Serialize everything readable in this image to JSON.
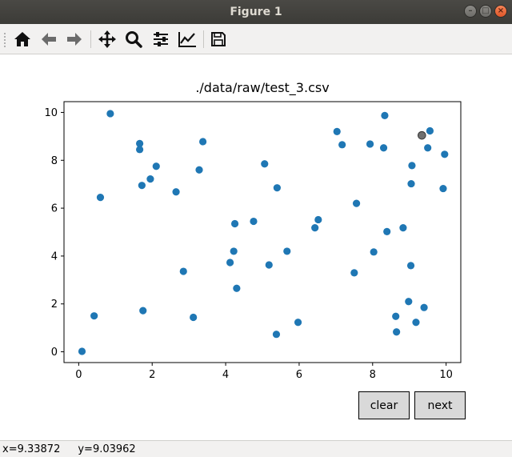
{
  "window": {
    "title": "Figure 1"
  },
  "toolbar": {
    "items": [
      {
        "icon": "home-icon"
      },
      {
        "icon": "back-arrow-icon"
      },
      {
        "icon": "forward-arrow-icon"
      },
      {
        "icon": "pan-icon"
      },
      {
        "icon": "zoom-icon"
      },
      {
        "icon": "configure-subplots-icon"
      },
      {
        "icon": "edit-axis-icon"
      },
      {
        "icon": "save-icon"
      }
    ]
  },
  "chart_data": {
    "type": "scatter",
    "title": "./data/raw/test_3.csv",
    "xlabel": "",
    "ylabel": "",
    "xlim": [
      -0.4,
      10.4
    ],
    "ylim": [
      -0.45,
      10.45
    ],
    "xticks": [
      "0",
      "2",
      "4",
      "6",
      "8",
      "10"
    ],
    "yticks": [
      "0",
      "2",
      "4",
      "6",
      "8",
      "10"
    ],
    "grid": false,
    "color": "#1f77b4",
    "highlight_color": "#707070",
    "points": [
      [
        0.09,
        0.02
      ],
      [
        0.42,
        1.5
      ],
      [
        0.59,
        6.45
      ],
      [
        0.86,
        9.95
      ],
      [
        1.66,
        8.7
      ],
      [
        1.66,
        8.45
      ],
      [
        1.72,
        6.95
      ],
      [
        1.75,
        1.72
      ],
      [
        1.95,
        7.22
      ],
      [
        2.11,
        7.75
      ],
      [
        2.65,
        6.68
      ],
      [
        2.85,
        3.36
      ],
      [
        3.12,
        1.44
      ],
      [
        3.28,
        7.6
      ],
      [
        3.38,
        8.78
      ],
      [
        4.12,
        3.73
      ],
      [
        4.22,
        4.2
      ],
      [
        4.25,
        5.35
      ],
      [
        4.3,
        2.65
      ],
      [
        4.76,
        5.45
      ],
      [
        5.06,
        7.85
      ],
      [
        5.18,
        3.63
      ],
      [
        5.38,
        0.73
      ],
      [
        5.4,
        6.85
      ],
      [
        5.67,
        4.2
      ],
      [
        5.97,
        1.23
      ],
      [
        6.43,
        5.18
      ],
      [
        6.52,
        5.52
      ],
      [
        7.03,
        9.2
      ],
      [
        7.17,
        8.65
      ],
      [
        7.5,
        3.3
      ],
      [
        7.56,
        6.2
      ],
      [
        7.93,
        8.68
      ],
      [
        8.03,
        4.17
      ],
      [
        8.3,
        8.52
      ],
      [
        8.33,
        9.87
      ],
      [
        8.39,
        5.02
      ],
      [
        8.63,
        1.48
      ],
      [
        8.65,
        0.83
      ],
      [
        8.83,
        5.18
      ],
      [
        8.98,
        2.1
      ],
      [
        9.04,
        3.6
      ],
      [
        9.05,
        7.02
      ],
      [
        9.07,
        7.78
      ],
      [
        9.18,
        1.23
      ],
      [
        9.4,
        1.85
      ],
      [
        9.5,
        8.52
      ],
      [
        9.56,
        9.23
      ],
      [
        9.92,
        6.82
      ],
      [
        9.96,
        8.25
      ]
    ],
    "highlight_point": [
      9.34,
      9.04
    ]
  },
  "buttons": {
    "clear": "clear",
    "next": "next"
  },
  "status": {
    "x": "x=9.33872",
    "y": "y=9.03962"
  }
}
